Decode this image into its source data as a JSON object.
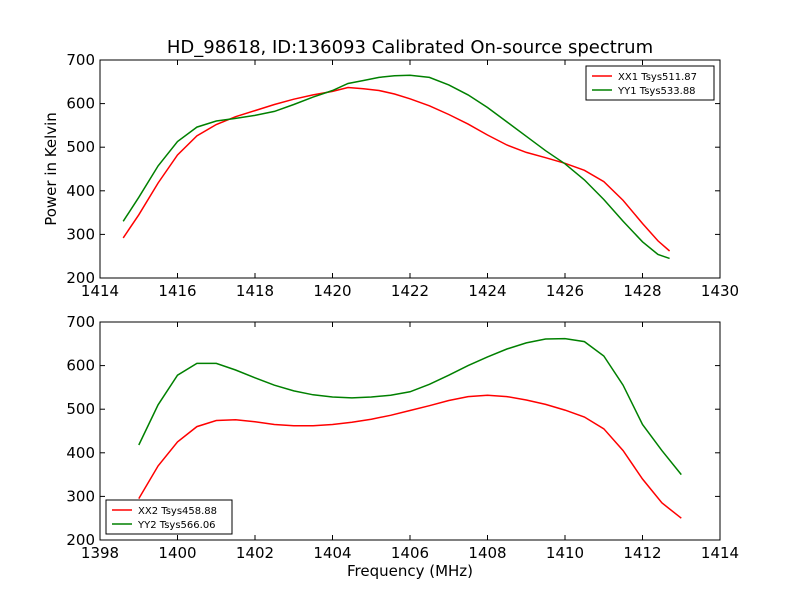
{
  "title": "HD_98618, ID:136093 Calibrated On-source spectrum",
  "chart_data": [
    {
      "type": "line",
      "ylabel": "Power in Kelvin",
      "xlabel": "",
      "xlim": [
        1414,
        1430
      ],
      "ylim": [
        200,
        700
      ],
      "xticks": [
        1414,
        1416,
        1418,
        1420,
        1422,
        1424,
        1426,
        1428,
        1430
      ],
      "yticks": [
        200,
        300,
        400,
        500,
        600,
        700
      ],
      "legend_position": "top-right",
      "series": [
        {
          "name": "XX1 Tsys511.87",
          "color": "#ff0000",
          "x": [
            1414.6,
            1415.0,
            1415.5,
            1416.0,
            1416.5,
            1417.0,
            1417.5,
            1418.0,
            1418.5,
            1419.0,
            1419.5,
            1420.0,
            1420.4,
            1420.8,
            1421.2,
            1421.6,
            1422.0,
            1422.5,
            1423.0,
            1423.5,
            1424.0,
            1424.5,
            1425.0,
            1425.5,
            1426.0,
            1426.5,
            1427.0,
            1427.5,
            1428.0,
            1428.4,
            1428.7
          ],
          "values": [
            292,
            345,
            418,
            482,
            526,
            552,
            570,
            584,
            598,
            610,
            620,
            628,
            637,
            634,
            630,
            622,
            611,
            595,
            575,
            553,
            528,
            505,
            488,
            476,
            463,
            447,
            421,
            378,
            325,
            285,
            262
          ]
        },
        {
          "name": "YY1 Tsys533.88",
          "color": "#008000",
          "x": [
            1414.6,
            1415.0,
            1415.5,
            1416.0,
            1416.5,
            1417.0,
            1417.5,
            1418.0,
            1418.5,
            1419.0,
            1419.5,
            1420.0,
            1420.4,
            1420.8,
            1421.2,
            1421.6,
            1422.0,
            1422.5,
            1423.0,
            1423.5,
            1424.0,
            1424.5,
            1425.0,
            1425.5,
            1426.0,
            1426.5,
            1427.0,
            1427.5,
            1428.0,
            1428.4,
            1428.7
          ],
          "values": [
            330,
            385,
            457,
            513,
            546,
            560,
            566,
            573,
            582,
            598,
            615,
            630,
            646,
            653,
            660,
            664,
            665,
            660,
            643,
            620,
            591,
            558,
            525,
            492,
            462,
            425,
            380,
            330,
            283,
            254,
            245
          ]
        }
      ]
    },
    {
      "type": "line",
      "ylabel": "",
      "xlabel": "Frequency (MHz)",
      "xlim": [
        1398,
        1414
      ],
      "ylim": [
        200,
        700
      ],
      "xticks": [
        1398,
        1400,
        1402,
        1404,
        1406,
        1408,
        1410,
        1412,
        1414
      ],
      "yticks": [
        200,
        300,
        400,
        500,
        600,
        700
      ],
      "legend_position": "bottom-left",
      "series": [
        {
          "name": "XX2 Tsys458.88",
          "color": "#ff0000",
          "x": [
            1399.0,
            1399.5,
            1400.0,
            1400.5,
            1401.0,
            1401.5,
            1402.0,
            1402.5,
            1403.0,
            1403.5,
            1404.0,
            1404.5,
            1405.0,
            1405.5,
            1406.0,
            1406.5,
            1407.0,
            1407.5,
            1408.0,
            1408.5,
            1409.0,
            1409.5,
            1410.0,
            1410.5,
            1411.0,
            1411.5,
            1412.0,
            1412.5,
            1413.0
          ],
          "values": [
            295,
            370,
            425,
            460,
            474,
            476,
            471,
            465,
            462,
            462,
            465,
            470,
            477,
            486,
            497,
            508,
            520,
            529,
            532,
            529,
            521,
            511,
            498,
            482,
            455,
            405,
            340,
            285,
            250
          ]
        },
        {
          "name": "YY2 Tsys566.06",
          "color": "#008000",
          "x": [
            1399.0,
            1399.5,
            1400.0,
            1400.5,
            1401.0,
            1401.5,
            1402.0,
            1402.5,
            1403.0,
            1403.5,
            1404.0,
            1404.5,
            1405.0,
            1405.5,
            1406.0,
            1406.5,
            1407.0,
            1407.5,
            1408.0,
            1408.5,
            1409.0,
            1409.5,
            1410.0,
            1410.5,
            1411.0,
            1411.5,
            1412.0,
            1412.5,
            1413.0
          ],
          "values": [
            418,
            510,
            578,
            605,
            605,
            590,
            572,
            555,
            542,
            533,
            528,
            526,
            528,
            532,
            540,
            557,
            578,
            600,
            620,
            638,
            652,
            661,
            662,
            655,
            622,
            555,
            465,
            405,
            350
          ]
        }
      ]
    }
  ]
}
